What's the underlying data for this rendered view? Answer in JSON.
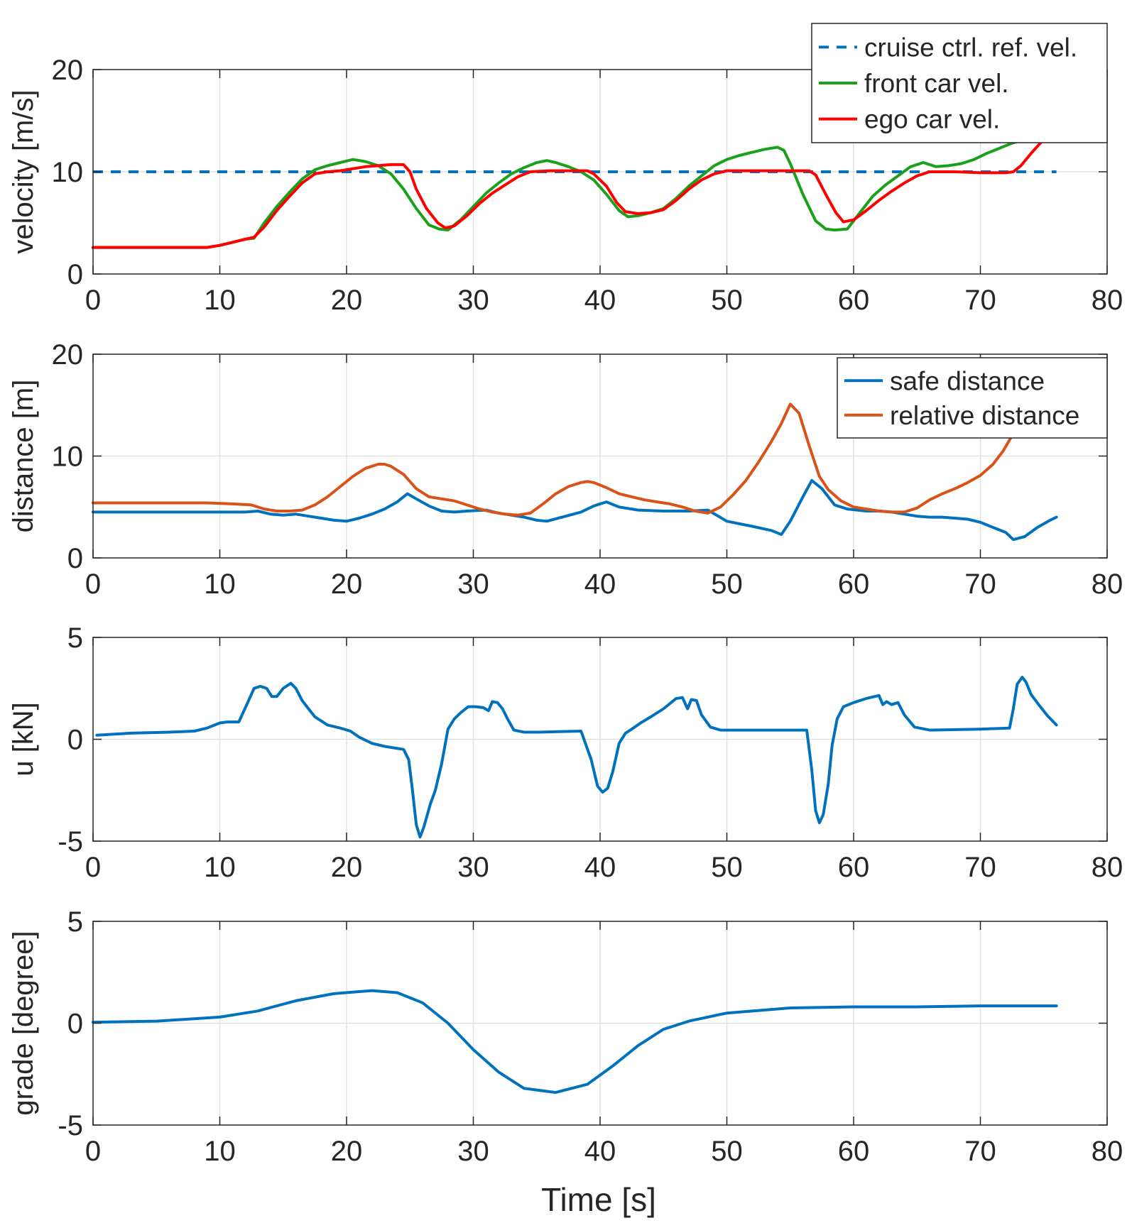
{
  "colors": {
    "blue": "#0072BD",
    "orange": "#D95319",
    "green": "#1AA01A",
    "red": "#FF0000",
    "grid": "#E1E1E1",
    "axis": "#262626"
  },
  "chart_data": [
    {
      "type": "line",
      "ylabel": "velocity [m/s]",
      "xlim": [
        0,
        80
      ],
      "ylim": [
        0,
        20
      ],
      "xticks": [
        "0",
        "10",
        "20",
        "30",
        "40",
        "50",
        "60",
        "70",
        "80"
      ],
      "yticks": [
        "0",
        "10",
        "20"
      ],
      "grid": true,
      "legend_position": "top-right",
      "series": [
        {
          "name": "cruise ctrl. ref. vel.",
          "color": "#0072BD",
          "dashed": true,
          "x": [
            0,
            76
          ],
          "y": [
            10,
            10
          ]
        },
        {
          "name": "front car vel.",
          "color": "#1AA01A",
          "dashed": false,
          "x": [
            0,
            4,
            9,
            10,
            11,
            12,
            12.7,
            13.5,
            14.5,
            15.5,
            16.5,
            17.5,
            18.5,
            19.5,
            20.5,
            21.5,
            22.5,
            23.5,
            24.5,
            25.5,
            26.5,
            27.3,
            28.0,
            29,
            30,
            31,
            32,
            33,
            34,
            35,
            35.8,
            36.5,
            37.5,
            38.5,
            39.5,
            40.5,
            41.5,
            42.2,
            43,
            44,
            45,
            46,
            47,
            48,
            49,
            50,
            51,
            52,
            53,
            54,
            54.5,
            55,
            56,
            57,
            57.8,
            58.5,
            59.5,
            60.5,
            61.5,
            62.5,
            63.5,
            64.5,
            65.5,
            66.5,
            67.5,
            68.5,
            69.5,
            70.5,
            71.5,
            72.5,
            73.5
          ],
          "y": [
            2.6,
            2.6,
            2.6,
            2.8,
            3.1,
            3.4,
            3.5,
            5.0,
            6.6,
            8.0,
            9.3,
            10.2,
            10.6,
            10.9,
            11.2,
            11.0,
            10.6,
            9.8,
            8.3,
            6.4,
            4.8,
            4.4,
            4.3,
            5.3,
            6.6,
            7.9,
            8.9,
            9.8,
            10.4,
            10.9,
            11.1,
            10.9,
            10.5,
            10.0,
            9.2,
            7.8,
            6.2,
            5.6,
            5.7,
            6.0,
            6.4,
            7.4,
            8.6,
            9.6,
            10.6,
            11.2,
            11.6,
            11.9,
            12.2,
            12.4,
            12.1,
            10.8,
            7.8,
            5.2,
            4.4,
            4.3,
            4.4,
            6.0,
            7.6,
            8.7,
            9.6,
            10.5,
            10.9,
            10.5,
            10.6,
            10.8,
            11.2,
            11.8,
            12.3,
            12.8,
            13.2
          ]
        },
        {
          "name": "ego car vel.",
          "color": "#FF0000",
          "dashed": false,
          "x": [
            0,
            4,
            9,
            10,
            11,
            12,
            12.7,
            13.5,
            14.5,
            15.5,
            16.5,
            17.5,
            18.5,
            19.5,
            20.5,
            21.5,
            22.5,
            23.5,
            24.5,
            25.0,
            25.5,
            26.3,
            27.2,
            27.8,
            28.5,
            29.5,
            30.5,
            31.5,
            32.5,
            33.5,
            34.5,
            36,
            38,
            39.0,
            39.5,
            40.5,
            41.3,
            42,
            43,
            44,
            45,
            46,
            47,
            48,
            49,
            50,
            52,
            54,
            55.5,
            56.5,
            57.0,
            57.8,
            58.6,
            59.2,
            60,
            61,
            62,
            63,
            64,
            65,
            66,
            68,
            70,
            72,
            72.6,
            73.2,
            74,
            74.8,
            75.3
          ],
          "y": [
            2.6,
            2.6,
            2.6,
            2.8,
            3.1,
            3.4,
            3.6,
            4.6,
            6.2,
            7.6,
            8.9,
            9.8,
            10.0,
            10.1,
            10.3,
            10.5,
            10.6,
            10.7,
            10.7,
            10.0,
            8.3,
            6.4,
            5.0,
            4.5,
            4.7,
            5.7,
            6.9,
            7.9,
            8.7,
            9.5,
            10.0,
            10.1,
            10.1,
            10.1,
            9.8,
            8.6,
            7.0,
            6.1,
            5.9,
            6.0,
            6.3,
            7.2,
            8.3,
            9.2,
            9.8,
            10.1,
            10.1,
            10.1,
            10.1,
            10.1,
            9.7,
            7.8,
            6.0,
            5.1,
            5.3,
            6.2,
            7.2,
            8.1,
            8.9,
            9.6,
            10.0,
            10.0,
            9.9,
            9.9,
            10.0,
            10.6,
            11.8,
            12.9,
            13.5
          ]
        }
      ]
    },
    {
      "type": "line",
      "ylabel": "distance [m]",
      "xlim": [
        0,
        80
      ],
      "ylim": [
        0,
        20
      ],
      "xticks": [
        "0",
        "10",
        "20",
        "30",
        "40",
        "50",
        "60",
        "70",
        "80"
      ],
      "yticks": [
        "0",
        "10",
        "20"
      ],
      "grid": true,
      "legend_position": "top-right",
      "series": [
        {
          "name": "safe distance",
          "color": "#0072BD",
          "dashed": false,
          "x": [
            0,
            10,
            12,
            13,
            14,
            15,
            16,
            17,
            18,
            19,
            20,
            21,
            22,
            23,
            24,
            24.8,
            25.5,
            26.5,
            27.5,
            28.5,
            29.5,
            31,
            32,
            33,
            34,
            35,
            35.8,
            37,
            38.5,
            39.5,
            40.5,
            41.5,
            43,
            45,
            47,
            48.5,
            50,
            52,
            53.5,
            54.3,
            55.0,
            56.0,
            56.7,
            57.5,
            58.5,
            59.5,
            61,
            62,
            63,
            64,
            65,
            66,
            67,
            68,
            69,
            70,
            71,
            72,
            72.6,
            73.5,
            74.5,
            75.5,
            76
          ],
          "y": [
            4.5,
            4.5,
            4.5,
            4.6,
            4.3,
            4.2,
            4.3,
            4.1,
            3.9,
            3.7,
            3.6,
            3.9,
            4.3,
            4.8,
            5.5,
            6.3,
            5.8,
            5.1,
            4.6,
            4.5,
            4.6,
            4.7,
            4.4,
            4.2,
            4.0,
            3.7,
            3.6,
            4.0,
            4.5,
            5.1,
            5.5,
            5.0,
            4.7,
            4.6,
            4.6,
            4.7,
            3.6,
            3.1,
            2.7,
            2.3,
            3.6,
            6.0,
            7.6,
            6.8,
            5.2,
            4.8,
            4.6,
            4.6,
            4.5,
            4.3,
            4.1,
            4.0,
            4.0,
            3.9,
            3.8,
            3.5,
            3.0,
            2.5,
            1.8,
            2.1,
            3.0,
            3.7,
            4.0
          ]
        },
        {
          "name": "relative distance",
          "color": "#D95319",
          "dashed": false,
          "x": [
            0,
            5,
            9,
            11,
            12.5,
            13.5,
            14.5,
            15.5,
            16.5,
            17.5,
            18.5,
            19.5,
            20.5,
            21.5,
            22.5,
            23.0,
            23.5,
            24.5,
            25.5,
            26.5,
            27.5,
            28.5,
            29.5,
            30.5,
            31.5,
            32.5,
            33.5,
            34.5,
            35.5,
            36.5,
            37.5,
            38.5,
            39.0,
            39.5,
            40.5,
            41.5,
            42.5,
            43.5,
            44.5,
            45.5,
            46.5,
            47.5,
            48.5,
            49.5,
            50.5,
            51.5,
            52.5,
            53.5,
            54.3,
            55.0,
            55.7,
            56.5,
            57.3,
            58.0,
            59,
            60,
            61,
            62,
            63,
            64,
            65,
            66,
            67,
            68,
            69,
            70,
            71,
            71.8,
            72.5
          ],
          "y": [
            5.4,
            5.4,
            5.4,
            5.3,
            5.2,
            4.8,
            4.6,
            4.6,
            4.7,
            5.2,
            6.0,
            7.0,
            8.0,
            8.8,
            9.2,
            9.2,
            9.0,
            8.2,
            6.8,
            6.0,
            5.8,
            5.6,
            5.2,
            4.8,
            4.5,
            4.3,
            4.2,
            4.4,
            5.3,
            6.3,
            7.0,
            7.4,
            7.5,
            7.4,
            6.9,
            6.3,
            6.0,
            5.7,
            5.5,
            5.3,
            5.0,
            4.6,
            4.4,
            5.0,
            6.2,
            7.6,
            9.4,
            11.4,
            13.2,
            15.1,
            14.2,
            11.0,
            8.0,
            6.7,
            5.6,
            5.0,
            4.8,
            4.6,
            4.5,
            4.5,
            4.9,
            5.7,
            6.3,
            6.8,
            7.4,
            8.1,
            9.2,
            10.5,
            12.0
          ]
        }
      ]
    },
    {
      "type": "line",
      "ylabel": "u [kN]",
      "xlim": [
        0,
        80
      ],
      "ylim": [
        -5,
        5
      ],
      "xticks": [
        "0",
        "10",
        "20",
        "30",
        "40",
        "50",
        "60",
        "70",
        "80"
      ],
      "yticks": [
        "-5",
        "0",
        "5"
      ],
      "grid": true,
      "series": [
        {
          "name": "",
          "color": "#0072BD",
          "dashed": false,
          "x": [
            0.3,
            3,
            6,
            8,
            9,
            10,
            10.6,
            11.5,
            12.2,
            12.7,
            13.2,
            13.7,
            14.1,
            14.5,
            15.0,
            15.6,
            16.0,
            16.5,
            17.0,
            17.5,
            18.5,
            19.5,
            20.3,
            21,
            22,
            23,
            24,
            24.5,
            24.9,
            25.2,
            25.5,
            25.8,
            26.1,
            26.6,
            27.0,
            27.5,
            28.0,
            28.5,
            29.0,
            29.6,
            30.2,
            30.8,
            31.2,
            31.5,
            31.9,
            32.3,
            32.7,
            33.2,
            34,
            35,
            38.5,
            39.3,
            39.8,
            40.2,
            40.6,
            41.0,
            41.5,
            42.0,
            42.5,
            43.2,
            44,
            45,
            46.0,
            46.5,
            46.9,
            47.2,
            47.6,
            48.0,
            48.7,
            49.5,
            56.3,
            56.7,
            57.0,
            57.3,
            57.6,
            58.0,
            58.3,
            58.7,
            59.2,
            60,
            61,
            62.0,
            62.3,
            62.6,
            63.0,
            63.5,
            64.0,
            64.8,
            66,
            70,
            72.3,
            72.6,
            72.9,
            73.3,
            73.6,
            74.0,
            74.6,
            75.3,
            76
          ],
          "y": [
            0.2,
            0.3,
            0.35,
            0.4,
            0.55,
            0.8,
            0.85,
            0.85,
            1.8,
            2.5,
            2.6,
            2.5,
            2.1,
            2.1,
            2.5,
            2.75,
            2.5,
            1.9,
            1.5,
            1.1,
            0.7,
            0.55,
            0.4,
            0.1,
            -0.2,
            -0.35,
            -0.45,
            -0.5,
            -1.0,
            -2.5,
            -4.2,
            -4.8,
            -4.3,
            -3.2,
            -2.5,
            -1.2,
            0.5,
            1.0,
            1.3,
            1.6,
            1.6,
            1.55,
            1.4,
            1.85,
            1.8,
            1.5,
            1.0,
            0.45,
            0.35,
            0.35,
            0.4,
            -1.0,
            -2.3,
            -2.6,
            -2.4,
            -1.6,
            -0.2,
            0.3,
            0.5,
            0.8,
            1.1,
            1.5,
            2.0,
            2.05,
            1.5,
            1.95,
            1.9,
            1.2,
            0.6,
            0.45,
            0.45,
            -1.5,
            -3.5,
            -4.1,
            -3.7,
            -2.2,
            -0.3,
            1.0,
            1.6,
            1.8,
            2.0,
            2.15,
            1.7,
            1.85,
            1.7,
            1.8,
            1.2,
            0.6,
            0.45,
            0.5,
            0.55,
            1.5,
            2.7,
            3.05,
            2.8,
            2.2,
            1.7,
            1.15,
            0.7
          ]
        }
      ]
    },
    {
      "type": "line",
      "ylabel": "grade [degree]",
      "xlabel": "Time [s]",
      "xlim": [
        0,
        80
      ],
      "ylim": [
        -5,
        5
      ],
      "xticks": [
        "0",
        "10",
        "20",
        "30",
        "40",
        "50",
        "60",
        "70",
        "80"
      ],
      "yticks": [
        "-5",
        "0",
        "5"
      ],
      "grid": true,
      "series": [
        {
          "name": "",
          "color": "#0072BD",
          "dashed": false,
          "x": [
            0,
            5,
            10,
            13,
            16,
            19,
            22,
            24,
            26,
            28,
            30,
            32,
            34,
            36.5,
            39,
            41,
            43,
            45,
            47,
            50,
            55,
            60,
            65,
            70,
            76
          ],
          "y": [
            0.05,
            0.1,
            0.3,
            0.6,
            1.1,
            1.45,
            1.6,
            1.5,
            1.0,
            0.0,
            -1.3,
            -2.4,
            -3.2,
            -3.4,
            -3.0,
            -2.1,
            -1.1,
            -0.3,
            0.1,
            0.5,
            0.75,
            0.8,
            0.8,
            0.85,
            0.85
          ]
        }
      ]
    }
  ]
}
